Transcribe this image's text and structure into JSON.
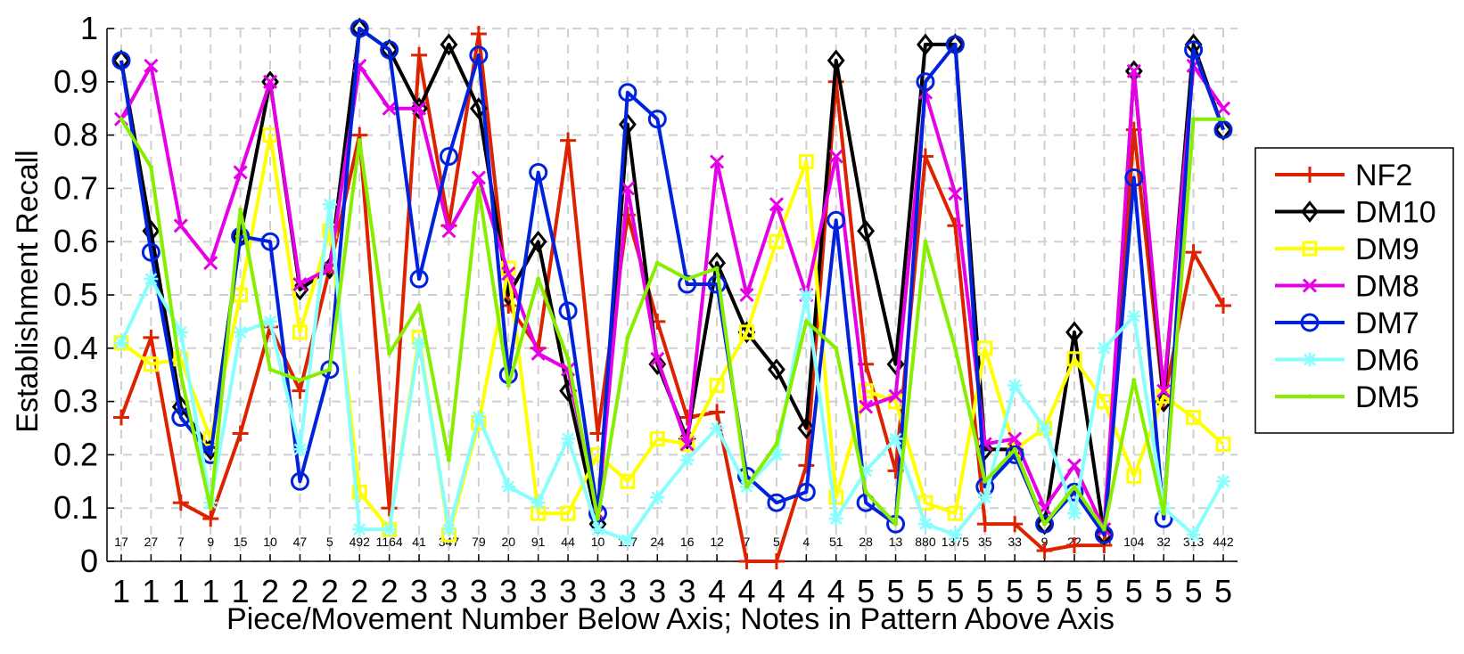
{
  "chart_data": {
    "type": "line",
    "xlabel": "Piece/Movement Number Below Axis; Notes in Pattern Above Axis",
    "ylabel": "Establishment Recall",
    "ylim": [
      0,
      1
    ],
    "yticks": [
      "0",
      "0.1",
      "0.2",
      "0.3",
      "0.4",
      "0.5",
      "0.6",
      "0.7",
      "0.8",
      "0.9",
      "1"
    ],
    "grid": true,
    "legend_position": "right",
    "categories": [
      "1",
      "1",
      "1",
      "1",
      "1",
      "2",
      "2",
      "2",
      "2",
      "2",
      "3",
      "3",
      "3",
      "3",
      "3",
      "3",
      "3",
      "3",
      "3",
      "3",
      "4",
      "4",
      "4",
      "4",
      "4",
      "5",
      "5",
      "5",
      "5",
      "5",
      "5",
      "5",
      "5",
      "5",
      "5",
      "5",
      "5",
      "5"
    ],
    "notes_in_pattern": [
      "17",
      "27",
      "7",
      "9",
      "15",
      "10",
      "47",
      "5",
      "492",
      "1164",
      "41",
      "347",
      "79",
      "20",
      "91",
      "44",
      "10",
      "117",
      "24",
      "16",
      "12",
      "7",
      "5",
      "4",
      "51",
      "28",
      "13",
      "880",
      "1375",
      "35",
      "33",
      "9",
      "22",
      "10",
      "104",
      "32",
      "313",
      "442"
    ],
    "series": [
      {
        "name": "NF2",
        "color": "#dd2200",
        "marker": "plus",
        "values": [
          0.27,
          0.42,
          0.11,
          0.08,
          0.24,
          0.44,
          0.32,
          0.55,
          0.8,
          0.1,
          0.95,
          0.63,
          0.99,
          0.48,
          0.4,
          0.79,
          0.24,
          0.65,
          0.45,
          0.27,
          0.28,
          0.0,
          0.0,
          0.18,
          0.9,
          0.37,
          0.17,
          0.76,
          0.63,
          0.07,
          0.07,
          0.02,
          0.03,
          0.03,
          0.81,
          0.3,
          0.58,
          0.48
        ]
      },
      {
        "name": "DM10",
        "color": "#000000",
        "marker": "diamond",
        "values": [
          0.94,
          0.62,
          0.29,
          0.21,
          0.61,
          0.9,
          0.51,
          0.55,
          1.0,
          0.96,
          0.85,
          0.97,
          0.85,
          0.5,
          0.6,
          0.32,
          0.07,
          0.82,
          0.37,
          0.23,
          0.56,
          0.43,
          0.36,
          0.25,
          0.94,
          0.62,
          0.37,
          0.97,
          0.97,
          0.21,
          0.21,
          0.07,
          0.43,
          0.05,
          0.92,
          0.3,
          0.97,
          0.81
        ]
      },
      {
        "name": "DM9",
        "color": "#ffff00",
        "marker": "square",
        "values": [
          0.41,
          0.37,
          0.38,
          0.23,
          0.5,
          0.8,
          0.43,
          0.62,
          0.13,
          0.06,
          0.42,
          0.05,
          0.26,
          0.55,
          0.09,
          0.09,
          0.2,
          0.15,
          0.23,
          0.22,
          0.33,
          0.43,
          0.6,
          0.75,
          0.12,
          0.32,
          0.3,
          0.11,
          0.09,
          0.4,
          0.21,
          0.25,
          0.38,
          0.3,
          0.16,
          0.31,
          0.27,
          0.22
        ]
      },
      {
        "name": "DM8",
        "color": "#e600e6",
        "marker": "x",
        "values": [
          0.83,
          0.93,
          0.63,
          0.56,
          0.73,
          0.9,
          0.52,
          0.55,
          0.93,
          0.85,
          0.85,
          0.62,
          0.72,
          0.54,
          0.39,
          0.36,
          0.09,
          0.7,
          0.38,
          0.22,
          0.75,
          0.5,
          0.67,
          0.5,
          0.76,
          0.29,
          0.31,
          0.88,
          0.69,
          0.22,
          0.23,
          0.1,
          0.18,
          0.06,
          0.92,
          0.32,
          0.93,
          0.85
        ]
      },
      {
        "name": "DM7",
        "color": "#0022dd",
        "marker": "circle",
        "values": [
          0.94,
          0.58,
          0.27,
          0.2,
          0.61,
          0.6,
          0.15,
          0.36,
          1.0,
          0.96,
          0.53,
          0.76,
          0.95,
          0.35,
          0.73,
          0.47,
          0.09,
          0.88,
          0.83,
          0.52,
          0.52,
          0.16,
          0.11,
          0.13,
          0.64,
          0.11,
          0.07,
          0.9,
          0.97,
          0.14,
          0.2,
          0.07,
          0.13,
          0.05,
          0.72,
          0.08,
          0.96,
          0.81
        ]
      },
      {
        "name": "DM6",
        "color": "#88ffff",
        "marker": "star",
        "values": [
          0.41,
          0.53,
          0.43,
          0.11,
          0.43,
          0.45,
          0.21,
          0.67,
          0.06,
          0.06,
          0.41,
          0.06,
          0.27,
          0.14,
          0.11,
          0.23,
          0.06,
          0.04,
          0.12,
          0.19,
          0.25,
          0.14,
          0.2,
          0.5,
          0.08,
          0.17,
          0.23,
          0.07,
          0.05,
          0.12,
          0.33,
          0.25,
          0.09,
          0.4,
          0.46,
          0.1,
          0.05,
          0.15
        ]
      },
      {
        "name": "DM5",
        "color": "#88ee00",
        "marker": "point",
        "values": [
          0.83,
          0.74,
          0.35,
          0.1,
          0.66,
          0.36,
          0.34,
          0.36,
          0.79,
          0.39,
          0.48,
          0.19,
          0.7,
          0.33,
          0.53,
          0.38,
          0.08,
          0.42,
          0.56,
          0.53,
          0.55,
          0.14,
          0.22,
          0.45,
          0.4,
          0.13,
          0.07,
          0.6,
          0.4,
          0.15,
          0.21,
          0.07,
          0.14,
          0.06,
          0.34,
          0.09,
          0.83,
          0.83
        ]
      }
    ]
  }
}
